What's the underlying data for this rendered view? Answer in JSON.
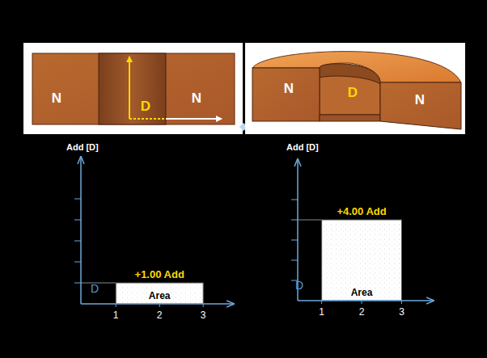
{
  "diagram": {
    "panels": [
      {
        "labels": [
          "N",
          "D",
          "N"
        ]
      },
      {
        "labels": [
          "N",
          "D",
          "N"
        ]
      }
    ]
  },
  "chart_data": [
    {
      "type": "histogram",
      "y_label": "Add [D]",
      "annotations": [
        "D",
        "Area"
      ],
      "bins": [
        1,
        3
      ],
      "values": [
        1.0
      ],
      "value_labels": [
        "+1.00 Add"
      ],
      "data_labels": true,
      "color": "#ffffff",
      "xlim": [
        0.2,
        3.7
      ],
      "xticks": [
        1,
        2,
        3
      ],
      "ylim": [
        0,
        7
      ],
      "yticks": [
        1,
        2,
        3,
        4,
        5
      ],
      "tick_labels": "x"
    },
    {
      "type": "histogram",
      "y_label": "Add [D]",
      "annotations": [
        "D",
        "Area"
      ],
      "bins": [
        1,
        3
      ],
      "values": [
        4.0
      ],
      "value_labels": [
        "+4.00 Add"
      ],
      "data_labels": true,
      "color": "#ffffff",
      "xlim": [
        0.4,
        3.8
      ],
      "xticks": [
        1,
        2,
        3
      ],
      "ylim": [
        0,
        7
      ],
      "yticks": [
        1,
        2,
        3,
        4,
        5
      ],
      "tick_labels": "x"
    }
  ]
}
